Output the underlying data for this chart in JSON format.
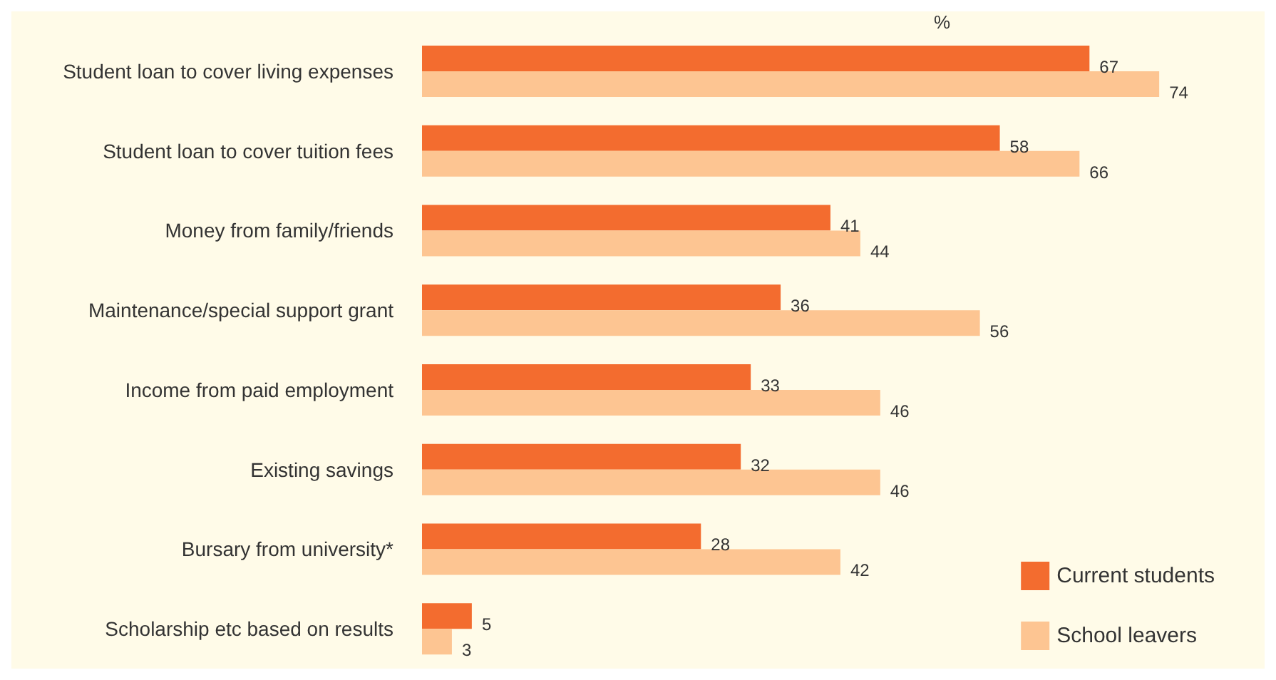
{
  "chart_data": {
    "type": "bar",
    "orientation": "horizontal",
    "xlabel": "%",
    "categories": [
      "Student loan to cover living expenses",
      "Student loan to cover tuition fees",
      "Money from family/friends",
      "Maintenance/special support grant",
      "Income from paid employment",
      "Existing savings",
      "Bursary from university*",
      "Scholarship etc based on results"
    ],
    "series": [
      {
        "name": "Current students",
        "color": "#f36c2f",
        "values": [
          67,
          58,
          41,
          36,
          33,
          32,
          28,
          5
        ]
      },
      {
        "name": "School leavers",
        "color": "#fdc592",
        "values": [
          74,
          66,
          44,
          56,
          46,
          46,
          42,
          3
        ]
      }
    ],
    "data_labels": true,
    "grid": false,
    "legend": "bottom right"
  }
}
